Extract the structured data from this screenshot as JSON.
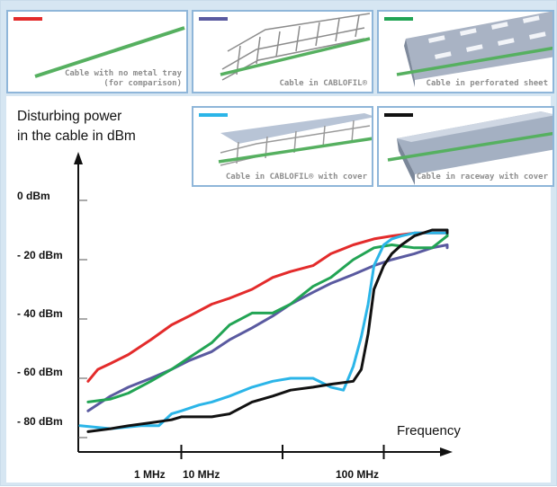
{
  "chart_data": {
    "type": "line",
    "ylabel_line1": "Disturbing power",
    "ylabel_line2": "in the cable in dBm",
    "xlabel": "Frequency",
    "yticks": [
      "0 dBm",
      "- 20 dBm",
      "- 40 dBm",
      "- 60 dBm",
      "- 80 dBm"
    ],
    "ytick_values": [
      0,
      -20,
      -40,
      -60,
      -80
    ],
    "xticks": [
      "1 MHz",
      "10 MHz",
      "100 MHz"
    ],
    "xtick_values": [
      1,
      10,
      100
    ],
    "x_scale": "log",
    "xlim": [
      0.1,
      1000
    ],
    "ylim": [
      -90,
      20
    ],
    "legend_placement": "top panels with images",
    "series": [
      {
        "caption": "Cable with no metal tray (for comparison)",
        "color": "#e32b2b",
        "x": [
          0.12,
          0.15,
          0.2,
          0.3,
          0.5,
          0.8,
          1.2,
          2,
          3,
          5,
          8,
          12,
          20,
          30,
          50,
          80,
          120,
          200,
          300,
          500,
          700
        ],
        "y": [
          -61,
          -57,
          -55,
          -52,
          -47,
          -42,
          -39,
          -35,
          -33,
          -30,
          -26,
          -24,
          -22,
          -18,
          -15,
          -13,
          -12,
          -11,
          -11,
          -11,
          -12
        ]
      },
      {
        "caption": "Cable in CABLOFIL®",
        "color": "#5a5aa0",
        "x": [
          0.12,
          0.2,
          0.3,
          0.5,
          0.8,
          1.2,
          2,
          3,
          5,
          8,
          12,
          20,
          30,
          50,
          80,
          120,
          200,
          300,
          500,
          700
        ],
        "y": [
          -71,
          -66,
          -63,
          -60,
          -57,
          -54,
          -51,
          -47,
          -43,
          -39,
          -35,
          -31,
          -28,
          -25,
          -22,
          -20,
          -18,
          -16,
          -15,
          -16
        ]
      },
      {
        "caption": "Cable in perforated sheet",
        "color": "#22a454",
        "x": [
          0.12,
          0.2,
          0.3,
          0.5,
          0.8,
          1.2,
          2,
          3,
          5,
          8,
          12,
          20,
          30,
          50,
          80,
          120,
          200,
          300,
          500,
          700
        ],
        "y": [
          -68,
          -67,
          -65,
          -61,
          -57,
          -53,
          -48,
          -42,
          -38,
          -38,
          -35,
          -29,
          -26,
          -20,
          -16,
          -15,
          -16,
          -16,
          -12,
          -11
        ]
      },
      {
        "caption": "Cable in CABLOFIL® with cover",
        "color": "#2bb5e8",
        "x": [
          0.1,
          0.2,
          0.4,
          0.6,
          0.8,
          1,
          1.5,
          2,
          3,
          5,
          8,
          12,
          20,
          30,
          40,
          50,
          60,
          70,
          80,
          100,
          120,
          150,
          200,
          300,
          500,
          700
        ],
        "y": [
          -76,
          -77,
          -76,
          -76,
          -72,
          -71,
          -69,
          -68,
          -66,
          -63,
          -61,
          -60,
          -60,
          -63,
          -64,
          -56,
          -46,
          -35,
          -22,
          -15,
          -13,
          -12,
          -11,
          -11,
          -11,
          -10
        ]
      },
      {
        "caption": "Cable in raceway with cover",
        "color": "#111111",
        "x": [
          0.12,
          0.2,
          0.3,
          0.5,
          0.8,
          1,
          2,
          3,
          5,
          8,
          12,
          20,
          30,
          50,
          60,
          70,
          80,
          100,
          120,
          150,
          200,
          300,
          500,
          700
        ],
        "y": [
          -78,
          -77,
          -76,
          -75,
          -74,
          -73,
          -73,
          -72,
          -68,
          -66,
          -64,
          -63,
          -62,
          -61,
          -57,
          -45,
          -30,
          -22,
          -18,
          -15,
          -12,
          -10,
          -10,
          -11
        ]
      }
    ]
  }
}
